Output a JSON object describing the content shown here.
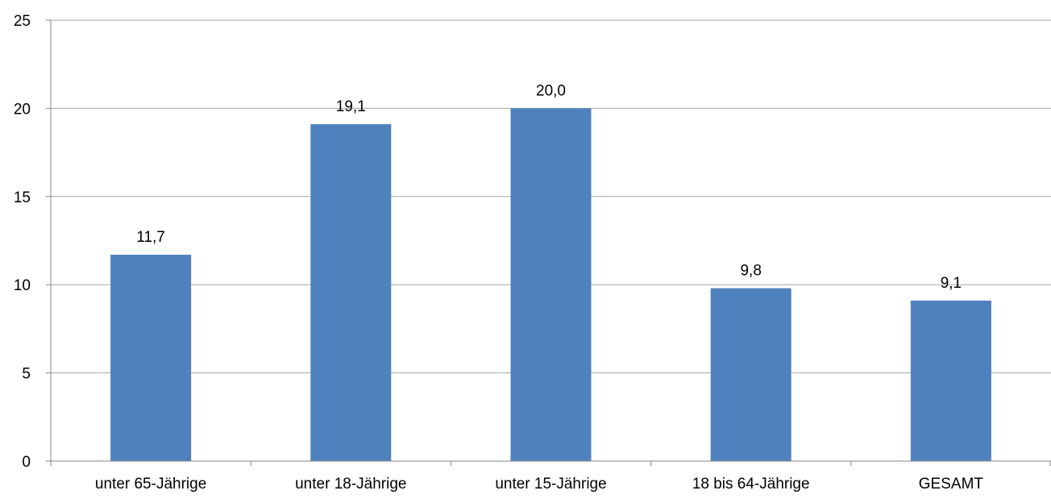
{
  "chart_data": {
    "type": "bar",
    "title": "",
    "xlabel": "",
    "ylabel": "",
    "categories": [
      "unter 65-Jährige",
      "unter 18-Jährige",
      "unter 15-Jährige",
      "18 bis 64-Jährige",
      "GESAMT"
    ],
    "values": [
      11.7,
      19.1,
      20.0,
      9.8,
      9.1
    ],
    "value_labels": [
      "11,7",
      "19,1",
      "20,0",
      "9,8",
      "9,1"
    ],
    "ylim": [
      0,
      25
    ],
    "yticks": [
      0,
      5,
      10,
      15,
      20,
      25
    ],
    "ytick_labels": [
      "0",
      "5",
      "10",
      "15",
      "20",
      "25"
    ],
    "grid": true,
    "legend": "none",
    "colors": {
      "bar": "#4f81bd",
      "grid": "#a6a6a6",
      "axis": "#868686"
    }
  }
}
